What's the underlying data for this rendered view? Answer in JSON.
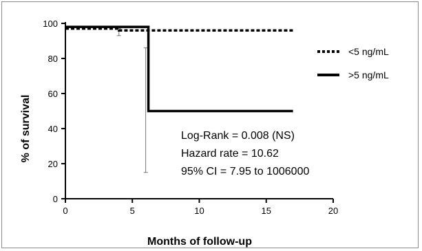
{
  "chart_data": {
    "type": "line",
    "subtype": "kaplan-meier step plot",
    "xlabel": "Months of follow-up",
    "ylabel": "% of survival",
    "xlim": [
      0,
      20
    ],
    "ylim": [
      0,
      100
    ],
    "xticks": [
      0,
      5,
      10,
      15,
      20
    ],
    "yticks": [
      0,
      20,
      40,
      60,
      80,
      100
    ],
    "grid": false,
    "legend": {
      "placement": "top-right"
    },
    "series": [
      {
        "name": "<5 ng/mL",
        "style": "dashed",
        "color": "#000000",
        "steps": [
          [
            0,
            97
          ],
          [
            4,
            97
          ],
          [
            4,
            96
          ],
          [
            17,
            96
          ]
        ],
        "error_bars": [
          {
            "x": 4,
            "y": 96,
            "low": 93,
            "high": 97
          }
        ]
      },
      {
        "name": ">5 ng/mL",
        "style": "solid",
        "color": "#000000",
        "steps": [
          [
            0,
            98
          ],
          [
            6.2,
            98
          ],
          [
            6.2,
            50
          ],
          [
            17,
            50
          ]
        ],
        "error_bars": [
          {
            "x": 6,
            "y": 50,
            "low": 15,
            "high": 86
          }
        ]
      }
    ],
    "annotations": [
      "Log-Rank = 0.008 (NS)",
      "Hazard rate = 10.62",
      "95% CI = 7.95 to 1006000"
    ]
  }
}
